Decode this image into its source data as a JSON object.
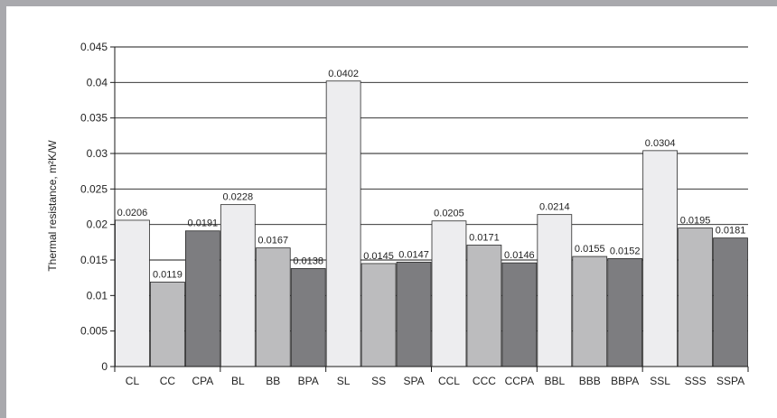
{
  "chart_data": {
    "type": "bar",
    "ylabel": "Thermal resistance, m²K/W",
    "ylim": [
      0,
      0.045
    ],
    "yticks": [
      "0",
      "0.005",
      "0.01",
      "0.015",
      "0.02",
      "0.025",
      "0.03",
      "0.035",
      "0.04",
      "0.045"
    ],
    "grid": true,
    "categories": [
      "CL",
      "CC",
      "CPA",
      "BL",
      "BB",
      "BPA",
      "SL",
      "SS",
      "SPA",
      "CCL",
      "CCC",
      "CCPA",
      "BBL",
      "BBB",
      "BBPA",
      "SSL",
      "SSS",
      "SSPA"
    ],
    "values": [
      0.0206,
      0.0119,
      0.0191,
      0.0228,
      0.0167,
      0.0138,
      0.0402,
      0.0145,
      0.0147,
      0.0205,
      0.0171,
      0.0146,
      0.0214,
      0.0155,
      0.0152,
      0.0304,
      0.0195,
      0.0181
    ],
    "value_labels": [
      "0.0206",
      "0.0119",
      "0.0191",
      "0.0228",
      "0.0167",
      "0.0138",
      "0.0402",
      "0.0145",
      "0.0147",
      "0.0205",
      "0.0171",
      "0.0146",
      "0.0214",
      "0.0155",
      "0.0152",
      "0.0304",
      "0.0195",
      "0.0181"
    ],
    "bar_colors": [
      "#ededef",
      "#bcbcbe",
      "#7d7d80"
    ]
  }
}
